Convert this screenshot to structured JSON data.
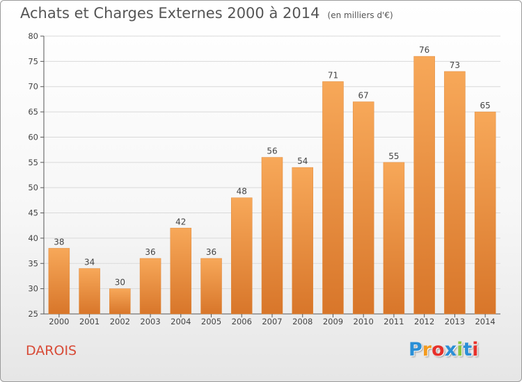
{
  "header": {
    "title": "Achats et Charges Externes 2000 à 2014",
    "subtitle": "(en milliers d'€)"
  },
  "commune_name": "DAROIS",
  "logo": {
    "letters": [
      "P",
      "r",
      "o",
      "x",
      "i",
      "t",
      "i"
    ],
    "colors": [
      "#2a8fd6",
      "#f39a1e",
      "#e7302a",
      "#2a8fd6",
      "#8cc63f",
      "#2a8fd6",
      "#e7302a"
    ]
  },
  "colors": {
    "bar_top": "#f7a859",
    "bar_bottom": "#d8762a",
    "label": "#444444",
    "grid": "#d9d9d9"
  },
  "chart_data": {
    "type": "bar",
    "title": "Achats et Charges Externes 2000 à 2014",
    "subtitle": "(en milliers d'€)",
    "categories": [
      "2000",
      "2001",
      "2002",
      "2003",
      "2004",
      "2005",
      "2006",
      "2007",
      "2008",
      "2009",
      "2010",
      "2011",
      "2012",
      "2013",
      "2014"
    ],
    "values": [
      38,
      34,
      30,
      36,
      42,
      36,
      48,
      56,
      54,
      71,
      67,
      55,
      76,
      73,
      65
    ],
    "ylim": [
      25,
      80
    ],
    "yticks": [
      25,
      30,
      35,
      40,
      45,
      50,
      55,
      60,
      65,
      70,
      75,
      80
    ],
    "grid": true,
    "xlabel": "",
    "ylabel": ""
  }
}
